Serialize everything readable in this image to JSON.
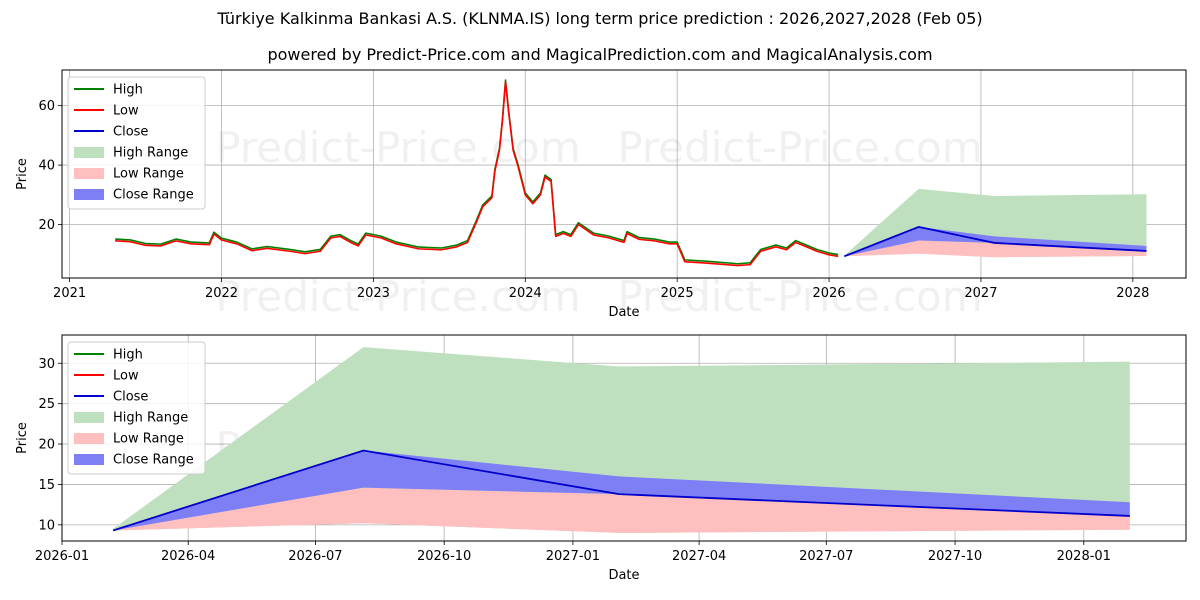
{
  "header": {
    "title": "Türkiye Kalkinma Bankasi A.S. (KLNMA.IS) long term price prediction : 2026,2027,2028 (Feb 05)",
    "subtitle": "powered by Predict-Price.com and MagicalPrediction.com and MagicalAnalysis.com"
  },
  "watermark": "Predict-Price.com",
  "colors": {
    "high": "#008000",
    "low": "#ff0000",
    "close": "#0000cc",
    "high_range": "#bfe0bf",
    "low_range": "#ffbfbf",
    "close_range": "#7f7ff5",
    "grid": "#b0b0b0"
  },
  "chart_data": [
    {
      "type": "line",
      "panel": "history",
      "xlabel": "Date",
      "ylabel": "Price",
      "xlim": [
        2020.95,
        2028.35
      ],
      "ylim": [
        2,
        72
      ],
      "x_ticks": [
        2021,
        2022,
        2023,
        2024,
        2025,
        2026,
        2027,
        2028
      ],
      "x_tick_labels": [
        "2021",
        "2022",
        "2023",
        "2024",
        "2025",
        "2026",
        "2027",
        "2028"
      ],
      "y_ticks": [
        20,
        40,
        60
      ],
      "y_tick_labels": [
        "20",
        "40",
        "60"
      ],
      "legend": [
        "High",
        "Low",
        "Close",
        "High Range",
        "Low Range",
        "Close Range"
      ],
      "legend_position": "upper-left",
      "history_points": [
        [
          2021.3,
          14.5
        ],
        [
          2021.4,
          14.2
        ],
        [
          2021.5,
          13.0
        ],
        [
          2021.6,
          12.8
        ],
        [
          2021.7,
          14.5
        ],
        [
          2021.8,
          13.5
        ],
        [
          2021.92,
          13.2
        ],
        [
          2021.95,
          16.8
        ],
        [
          2022.0,
          14.8
        ],
        [
          2022.1,
          13.5
        ],
        [
          2022.2,
          11.2
        ],
        [
          2022.3,
          12.0
        ],
        [
          2022.45,
          11.0
        ],
        [
          2022.55,
          10.2
        ],
        [
          2022.65,
          11.0
        ],
        [
          2022.72,
          15.5
        ],
        [
          2022.78,
          16.0
        ],
        [
          2022.85,
          14.0
        ],
        [
          2022.9,
          12.8
        ],
        [
          2022.95,
          16.5
        ],
        [
          2023.05,
          15.5
        ],
        [
          2023.15,
          13.5
        ],
        [
          2023.3,
          11.8
        ],
        [
          2023.45,
          11.5
        ],
        [
          2023.55,
          12.5
        ],
        [
          2023.62,
          14.0
        ],
        [
          2023.68,
          21.0
        ],
        [
          2023.72,
          26.0
        ],
        [
          2023.78,
          29.0
        ],
        [
          2023.8,
          38.0
        ],
        [
          2023.83,
          45.0
        ],
        [
          2023.85,
          55.0
        ],
        [
          2023.87,
          68.0
        ],
        [
          2023.89,
          58.0
        ],
        [
          2023.92,
          45.0
        ],
        [
          2023.95,
          40.0
        ],
        [
          2024.0,
          30.0
        ],
        [
          2024.05,
          27.0
        ],
        [
          2024.1,
          30.0
        ],
        [
          2024.13,
          36.0
        ],
        [
          2024.17,
          34.5
        ],
        [
          2024.2,
          16.0
        ],
        [
          2024.25,
          17.0
        ],
        [
          2024.3,
          16.0
        ],
        [
          2024.35,
          20.0
        ],
        [
          2024.45,
          16.5
        ],
        [
          2024.55,
          15.5
        ],
        [
          2024.65,
          14.0
        ],
        [
          2024.67,
          17.0
        ],
        [
          2024.75,
          15.0
        ],
        [
          2024.85,
          14.5
        ],
        [
          2024.95,
          13.5
        ],
        [
          2025.0,
          13.5
        ],
        [
          2025.05,
          7.5
        ],
        [
          2025.2,
          7.0
        ],
        [
          2025.4,
          6.2
        ],
        [
          2025.48,
          6.5
        ],
        [
          2025.55,
          11.0
        ],
        [
          2025.65,
          12.5
        ],
        [
          2025.72,
          11.5
        ],
        [
          2025.78,
          14.0
        ],
        [
          2025.85,
          12.5
        ],
        [
          2025.92,
          11.0
        ],
        [
          2026.0,
          9.8
        ],
        [
          2026.06,
          9.3
        ]
      ],
      "forecast": {
        "x": [
          2026.1,
          2026.59,
          2027.09,
          2028.09
        ],
        "close": [
          9.3,
          19.2,
          13.8,
          11.1
        ],
        "high_range_upper": [
          9.5,
          32.0,
          29.6,
          30.2
        ],
        "high_range_lower": [
          9.3,
          10.2,
          9.0,
          9.4
        ],
        "low_range_upper": [
          9.3,
          14.6,
          13.8,
          11.1
        ],
        "close_range_upper": [
          9.3,
          19.2,
          16.0,
          12.8
        ],
        "close_range_lower": [
          9.3,
          14.6,
          13.8,
          11.1
        ]
      }
    },
    {
      "type": "area",
      "panel": "forecast-zoom",
      "xlabel": "Date",
      "ylabel": "Price",
      "xlim": [
        2026.0,
        2028.2
      ],
      "ylim": [
        8,
        33.5
      ],
      "x_ticks": [
        2026.0,
        2026.247,
        2026.496,
        2026.748,
        2027.0,
        2027.247,
        2027.496,
        2027.748,
        2028.0
      ],
      "x_tick_labels": [
        "2026-01",
        "2026-04",
        "2026-07",
        "2026-10",
        "2027-01",
        "2027-04",
        "2027-07",
        "2027-10",
        "2028-01"
      ],
      "y_ticks": [
        10,
        15,
        20,
        25,
        30
      ],
      "y_tick_labels": [
        "10",
        "15",
        "20",
        "25",
        "30"
      ],
      "legend": [
        "High",
        "Low",
        "Close",
        "High Range",
        "Low Range",
        "Close Range"
      ],
      "legend_position": "upper-left",
      "forecast": {
        "x": [
          2026.1,
          2026.59,
          2027.09,
          2028.09
        ],
        "close": [
          9.3,
          19.2,
          13.8,
          11.1
        ],
        "high_range_upper": [
          9.5,
          32.0,
          29.6,
          30.2
        ],
        "high_range_lower": [
          9.3,
          10.2,
          9.0,
          9.4
        ],
        "low_range_upper": [
          9.3,
          14.6,
          13.8,
          11.1
        ],
        "close_range_upper": [
          9.3,
          19.2,
          16.0,
          12.8
        ],
        "close_range_lower": [
          9.3,
          14.6,
          13.8,
          11.1
        ]
      }
    }
  ]
}
